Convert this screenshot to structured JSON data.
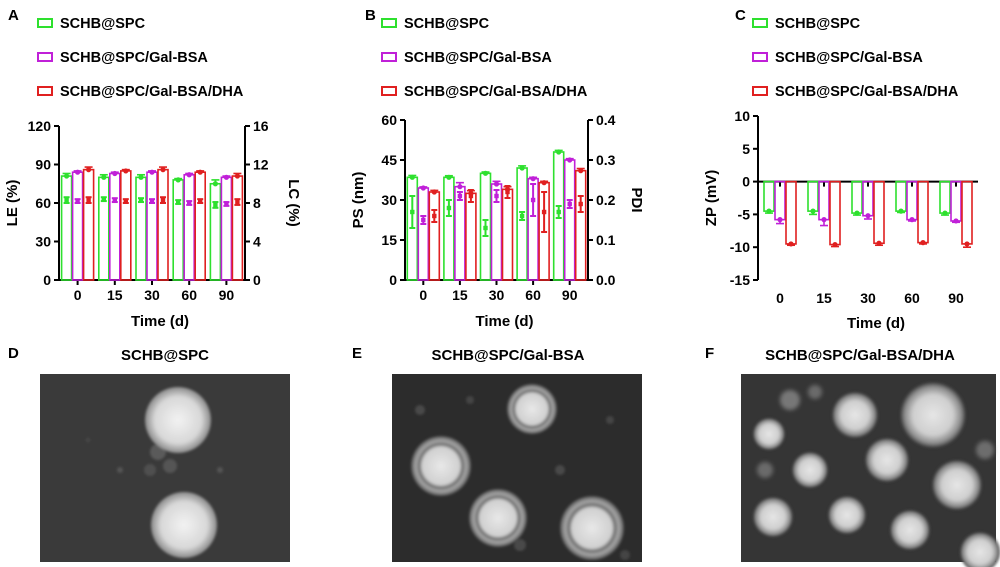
{
  "colors": {
    "green": "#2ee02e",
    "purple": "#c020d8",
    "red": "#e02020",
    "axis": "#000000"
  },
  "legend": [
    "SCHB@SPC",
    "SCHB@SPC/Gal-BSA",
    "SCHB@SPC/Gal-BSA/DHA"
  ],
  "panels": {
    "A": "A",
    "B": "B",
    "C": "C",
    "D": "D",
    "E": "E",
    "F": "F"
  },
  "micrographs": [
    {
      "label": "D",
      "title": "SCHB@SPC"
    },
    {
      "label": "E",
      "title": "SCHB@SPC/Gal-BSA"
    },
    {
      "label": "F",
      "title": "SCHB@SPC/Gal-BSA/DHA"
    }
  ],
  "chart_data": [
    {
      "panel": "A",
      "type": "bar",
      "xlabel": "Time (d)",
      "ylabel": "LE (%)",
      "ylim": [
        0,
        120
      ],
      "yticks": [
        0,
        30,
        60,
        90,
        120
      ],
      "y2label": "LC (%)",
      "y2lim": [
        0,
        16
      ],
      "y2ticks": [
        0,
        4,
        8,
        12,
        16
      ],
      "categories": [
        "0",
        "15",
        "30",
        "60",
        "90"
      ],
      "series": [
        {
          "name": "SCHB@SPC",
          "values": [
            81,
            80,
            80,
            78,
            75
          ],
          "err": [
            2,
            2,
            2,
            1,
            3
          ],
          "right": [
            8.3,
            8.4,
            8.3,
            8.1,
            7.8
          ],
          "right_err": [
            0.3,
            0.2,
            0.2,
            0.2,
            0.3
          ]
        },
        {
          "name": "SCHB@SPC/Gal-BSA",
          "values": [
            84,
            83,
            84,
            82,
            80
          ],
          "err": [
            1,
            1,
            1,
            1,
            1
          ],
          "right": [
            8.2,
            8.3,
            8.2,
            8.0,
            7.9
          ],
          "right_err": [
            0.2,
            0.2,
            0.2,
            0.2,
            0.2
          ]
        },
        {
          "name": "SCHB@SPC/Gal-BSA/DHA",
          "values": [
            86,
            85,
            86,
            84,
            81
          ],
          "err": [
            2,
            1,
            2,
            1,
            2
          ],
          "right": [
            8.3,
            8.2,
            8.3,
            8.2,
            8.1
          ],
          "right_err": [
            0.3,
            0.2,
            0.3,
            0.2,
            0.3
          ]
        }
      ]
    },
    {
      "panel": "B",
      "type": "bar",
      "xlabel": "Time (d)",
      "ylabel": "PS (nm)",
      "ylim": [
        0,
        60
      ],
      "yticks": [
        0,
        15,
        30,
        45,
        60
      ],
      "y2label": "PDI",
      "y2lim": [
        0,
        0.4
      ],
      "y2ticks": [
        "0.0",
        "0.1",
        "0.2",
        "0.3",
        "0.4"
      ],
      "categories": [
        "0",
        "15",
        "30",
        "60",
        "90"
      ],
      "series": [
        {
          "name": "SCHB@SPC",
          "values": [
            38.5,
            38.5,
            40,
            42,
            48
          ],
          "err": [
            0.7,
            0.6,
            0.5,
            0.8,
            0.6
          ],
          "right": [
            0.17,
            0.18,
            0.13,
            0.16,
            0.17
          ],
          "right_err": [
            0.04,
            0.02,
            0.02,
            0.01,
            0.015
          ]
        },
        {
          "name": "SCHB@SPC/Gal-BSA",
          "values": [
            34.5,
            35,
            36,
            38,
            45
          ],
          "err": [
            0.4,
            1.5,
            1,
            0.5,
            0.5
          ],
          "right": [
            0.15,
            0.21,
            0.21,
            0.2,
            0.19
          ],
          "right_err": [
            0.01,
            0.01,
            0.015,
            0.04,
            0.01
          ]
        },
        {
          "name": "SCHB@SPC/Gal-BSA/DHA",
          "values": [
            33,
            32.5,
            34,
            36.5,
            41
          ],
          "err": [
            0.6,
            1,
            1,
            0.5,
            0.8
          ],
          "right": [
            0.16,
            0.21,
            0.22,
            0.17,
            0.19
          ],
          "right_err": [
            0.015,
            0.015,
            0.015,
            0.05,
            0.02
          ]
        }
      ]
    },
    {
      "panel": "C",
      "type": "bar",
      "xlabel": "Time (d)",
      "ylabel": "ZP (mV)",
      "ylim": [
        -15,
        10
      ],
      "yticks": [
        -15,
        -10,
        -5,
        0,
        5,
        10
      ],
      "categories": [
        "0",
        "15",
        "30",
        "60",
        "90"
      ],
      "series": [
        {
          "name": "SCHB@SPC",
          "values": [
            -4.5,
            -4.5,
            -4.8,
            -4.5,
            -4.8
          ],
          "err": [
            0.3,
            0.5,
            0.3,
            0.2,
            0.3
          ]
        },
        {
          "name": "SCHB@SPC/Gal-BSA",
          "values": [
            -5.8,
            -5.8,
            -5.2,
            -5.8,
            -6.0
          ],
          "err": [
            0.6,
            0.9,
            0.5,
            0.2,
            0.2
          ]
        },
        {
          "name": "SCHB@SPC/Gal-BSA/DHA",
          "values": [
            -9.5,
            -9.6,
            -9.4,
            -9.3,
            -9.5
          ],
          "err": [
            0.2,
            0.3,
            0.3,
            0.2,
            0.5
          ]
        }
      ]
    }
  ]
}
